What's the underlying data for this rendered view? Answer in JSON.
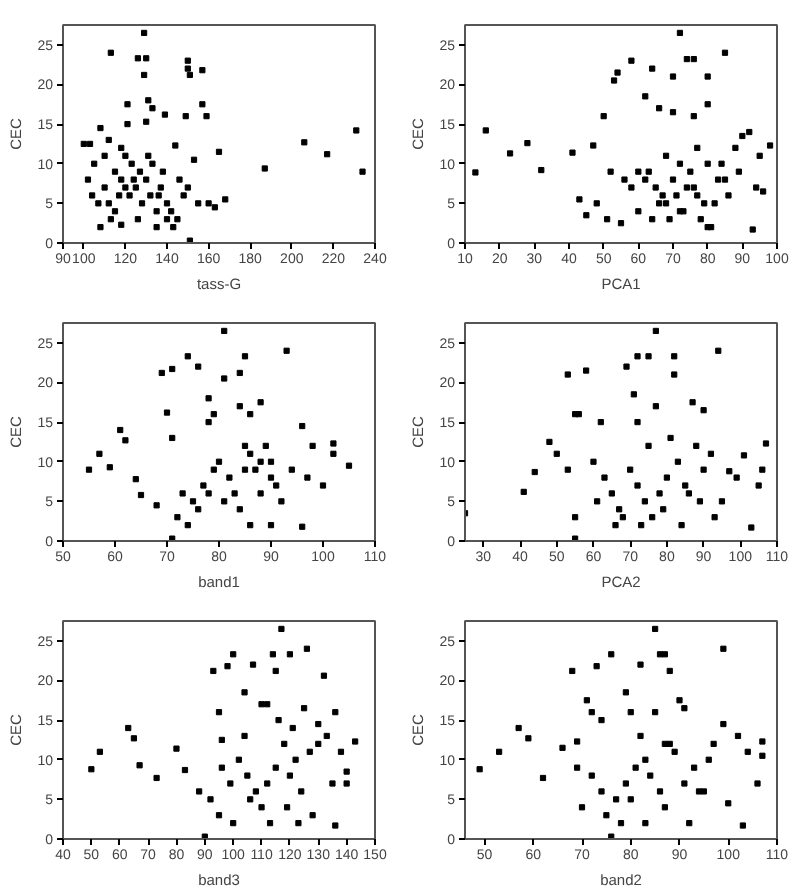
{
  "chart_data": [
    {
      "type": "scatter",
      "xlabel": "tass-G",
      "ylabel": "CEC",
      "marker": "square",
      "color": "#000000",
      "grid": false,
      "xlim": [
        90,
        240
      ],
      "xticks": [
        90,
        100,
        120,
        140,
        160,
        180,
        200,
        220,
        240
      ],
      "ylim": [
        0,
        27.5
      ],
      "yticks": [
        0,
        5,
        10,
        15,
        20,
        25
      ],
      "x": [
        129,
        113,
        126,
        130,
        150,
        150,
        157,
        151,
        129,
        121,
        157,
        131,
        133,
        159,
        139,
        149,
        130,
        108,
        121,
        100,
        103,
        112,
        144,
        165,
        206,
        217,
        231,
        234,
        187,
        153,
        151,
        108,
        118,
        135,
        143,
        160,
        168,
        163,
        105,
        110,
        115,
        118,
        120,
        122,
        125,
        128,
        130,
        132,
        135,
        138,
        140,
        142,
        145,
        148,
        150,
        112,
        115,
        118,
        123,
        127,
        133,
        137,
        110,
        104,
        107,
        113,
        126,
        140,
        146,
        155,
        120,
        131,
        117,
        124,
        136,
        102
      ],
      "values": [
        26.5,
        24,
        23.3,
        23.3,
        23,
        22,
        21.8,
        21.2,
        21.2,
        17.5,
        17.5,
        18,
        17,
        16,
        16.2,
        16,
        15.3,
        14.5,
        15,
        12.5,
        12.5,
        13,
        12.3,
        11.5,
        12.7,
        11.2,
        14.2,
        9,
        9.4,
        10.5,
        0.3,
        2,
        2.3,
        2,
        2,
        5,
        5.5,
        4.5,
        10,
        11,
        9,
        8,
        7,
        6,
        7,
        5,
        8,
        6,
        4,
        9,
        5,
        4,
        3,
        6,
        7,
        5,
        4,
        12,
        10,
        9,
        10,
        7,
        7,
        6,
        5,
        3,
        3,
        3,
        8,
        5,
        11,
        11,
        6,
        8,
        6,
        8
      ]
    },
    {
      "type": "scatter",
      "xlabel": "PCA1",
      "ylabel": "CEC",
      "marker": "square",
      "color": "#000000",
      "grid": false,
      "xlim": [
        10,
        100
      ],
      "xticks": [
        10,
        20,
        30,
        40,
        50,
        60,
        70,
        80,
        90,
        100
      ],
      "ylim": [
        0,
        27.5
      ],
      "yticks": [
        0,
        5,
        10,
        15,
        20,
        25
      ],
      "x": [
        72,
        85,
        74,
        76,
        58,
        64,
        54,
        70,
        80,
        53,
        62,
        80,
        70,
        50,
        76,
        66,
        16,
        13,
        23,
        28,
        32,
        41,
        43,
        45,
        47,
        48,
        55,
        93,
        96,
        98,
        90,
        92,
        88,
        84,
        60,
        62,
        65,
        67,
        68,
        70,
        72,
        74,
        75,
        77,
        78,
        80,
        82,
        85,
        58,
        63,
        66,
        69,
        71,
        73,
        76,
        79,
        81,
        83,
        86,
        52,
        56,
        60,
        64,
        68,
        72,
        77,
        80,
        89,
        94,
        95,
        51
      ],
      "values": [
        26.5,
        24,
        23.2,
        23.2,
        23,
        22,
        21.5,
        21,
        21,
        20.5,
        18.5,
        17.5,
        16.5,
        16,
        16,
        17,
        14.2,
        8.9,
        11.3,
        12.6,
        9.2,
        11.4,
        5.5,
        3.5,
        12.3,
        5,
        2.5,
        1.7,
        6.5,
        12.3,
        13.5,
        14,
        12,
        10,
        9,
        8,
        7,
        6,
        5,
        8,
        4,
        7,
        9,
        6,
        3,
        10,
        5,
        8,
        7,
        9,
        5,
        3,
        6,
        4,
        7,
        5,
        2,
        8,
        6,
        9,
        8,
        4,
        3,
        11,
        10,
        12,
        2,
        9,
        7,
        11,
        3
      ]
    },
    {
      "type": "scatter",
      "xlabel": "band1",
      "ylabel": "CEC",
      "marker": "square",
      "color": "#000000",
      "grid": false,
      "xlim": [
        50,
        110
      ],
      "xticks": [
        50,
        60,
        70,
        80,
        90,
        100,
        110
      ],
      "ylim": [
        0,
        27.5
      ],
      "yticks": [
        0,
        5,
        10,
        15,
        20,
        25
      ],
      "x": [
        81,
        93,
        74,
        85,
        69,
        81,
        76,
        84,
        88,
        71,
        78,
        79,
        86,
        70,
        84,
        55,
        57,
        59,
        61,
        62,
        64,
        65,
        71,
        105,
        102,
        102,
        98,
        96,
        96,
        73,
        75,
        77,
        79,
        80,
        82,
        83,
        85,
        86,
        87,
        88,
        89,
        90,
        91,
        92,
        72,
        74,
        76,
        78,
        81,
        84,
        86,
        88,
        90,
        94,
        97,
        100,
        71,
        78,
        85,
        90,
        68
      ],
      "values": [
        26.5,
        24,
        23.3,
        23.3,
        21.2,
        20.5,
        22,
        21.2,
        17.5,
        21.7,
        18,
        16,
        16,
        16.2,
        17,
        9,
        11,
        9.3,
        14,
        12.7,
        7.8,
        5.8,
        0.3,
        9.5,
        12.3,
        11,
        12,
        1.8,
        14.5,
        6,
        5,
        7,
        9,
        10,
        8,
        6,
        12,
        11,
        9,
        10,
        12,
        8,
        7,
        5,
        3,
        2,
        4,
        6,
        5,
        4,
        2,
        6,
        2,
        9,
        8,
        7,
        13,
        15,
        9,
        10,
        4.5
      ]
    },
    {
      "type": "scatter",
      "xlabel": "PCA2",
      "ylabel": "CEC",
      "marker": "square",
      "color": "#000000",
      "grid": false,
      "xlim": [
        25,
        110
      ],
      "xticks": [
        30,
        40,
        50,
        60,
        70,
        80,
        90,
        100,
        110
      ],
      "ylim": [
        0,
        27.5
      ],
      "yticks": [
        0,
        5,
        10,
        15,
        20,
        25
      ],
      "x": [
        77,
        94,
        72,
        75,
        82,
        69,
        58,
        53,
        56,
        82,
        71,
        77,
        72,
        87,
        90,
        62,
        55,
        25,
        41,
        44,
        48,
        50,
        53,
        55,
        103,
        107,
        105,
        106,
        101,
        97,
        60,
        63,
        65,
        67,
        70,
        72,
        74,
        76,
        78,
        80,
        83,
        85,
        88,
        90,
        92,
        95,
        66,
        68,
        73,
        79,
        84,
        86,
        93,
        99,
        61,
        75,
        81,
        89,
        55
      ],
      "values": [
        26.5,
        24,
        23.3,
        23.3,
        23.3,
        22,
        21.5,
        21,
        16,
        21,
        18.5,
        17,
        15,
        17.5,
        16.5,
        15,
        16,
        3.5,
        6.2,
        8.7,
        12.5,
        11,
        9,
        0.3,
        1.7,
        12.3,
        7,
        9,
        10.8,
        8.8,
        10,
        8,
        6,
        4,
        9,
        7,
        5,
        3,
        6,
        8,
        10,
        7,
        12,
        9,
        11,
        5,
        2,
        3,
        2,
        4,
        2,
        6,
        3,
        8,
        5,
        12,
        13,
        5,
        3
      ]
    },
    {
      "type": "scatter",
      "xlabel": "band3",
      "ylabel": "CEC",
      "marker": "square",
      "color": "#000000",
      "grid": false,
      "xlim": [
        40,
        150
      ],
      "xticks": [
        40,
        50,
        60,
        70,
        80,
        90,
        100,
        110,
        120,
        130,
        140,
        150
      ],
      "ylim": [
        0,
        27.5
      ],
      "yticks": [
        0,
        5,
        10,
        15,
        20,
        25
      ],
      "x": [
        117,
        126,
        100,
        114,
        120,
        93,
        98,
        107,
        115,
        132,
        104,
        110,
        112,
        95,
        125,
        136,
        50,
        53,
        63,
        65,
        67,
        73,
        80,
        83,
        90,
        143,
        140,
        138,
        136,
        135,
        88,
        92,
        96,
        99,
        102,
        105,
        108,
        110,
        112,
        115,
        118,
        120,
        122,
        124,
        127,
        130,
        133,
        95,
        100,
        106,
        113,
        119,
        123,
        128,
        140,
        96,
        104,
        116,
        121,
        130
      ],
      "values": [
        26.5,
        24,
        23.3,
        23.3,
        23.3,
        21.2,
        21.8,
        22,
        21.2,
        20.6,
        18.5,
        17,
        17,
        16,
        16.5,
        16,
        8.8,
        11,
        14,
        12.7,
        9.3,
        7.7,
        11.4,
        8.7,
        0.3,
        12.3,
        8.5,
        11,
        1.7,
        7,
        6,
        5,
        9,
        7,
        10,
        8,
        6,
        4,
        7,
        9,
        12,
        8,
        10,
        6,
        11,
        12,
        13,
        3,
        2,
        5,
        2,
        4,
        2,
        3,
        7,
        12.5,
        13,
        15,
        14,
        14.5
      ]
    },
    {
      "type": "scatter",
      "xlabel": "band2",
      "ylabel": "CEC",
      "marker": "square",
      "color": "#000000",
      "grid": false,
      "xlim": [
        46,
        110
      ],
      "xticks": [
        50,
        60,
        70,
        80,
        90,
        100,
        110
      ],
      "ylim": [
        0,
        27.5
      ],
      "yticks": [
        0,
        5,
        10,
        15,
        20,
        25
      ],
      "x": [
        85,
        99,
        76,
        86,
        87,
        68,
        73,
        82,
        88,
        71,
        79,
        80,
        85,
        90,
        72,
        91,
        49,
        53,
        57,
        59,
        62,
        66,
        69,
        76,
        107,
        107,
        106,
        103,
        100,
        69,
        72,
        74,
        77,
        79,
        81,
        83,
        84,
        86,
        87,
        89,
        91,
        93,
        95,
        97,
        99,
        102,
        104,
        70,
        75,
        78,
        80,
        83,
        87,
        92,
        94,
        74,
        82,
        88,
        96
      ],
      "values": [
        26.5,
        24,
        23.3,
        23.3,
        23.3,
        21.2,
        21.8,
        22,
        21.2,
        17.5,
        18.5,
        16,
        16,
        17.5,
        16,
        16.5,
        8.8,
        11,
        14,
        12.7,
        7.7,
        11.5,
        12.3,
        0.3,
        12.3,
        10.5,
        7,
        1.7,
        4.5,
        9,
        8,
        6,
        5,
        7,
        9,
        10,
        8,
        6,
        12,
        11,
        7,
        9,
        6,
        12,
        14.5,
        13,
        11,
        4,
        3,
        2,
        5,
        2,
        4,
        2,
        6,
        15,
        13,
        12,
        10
      ]
    }
  ]
}
